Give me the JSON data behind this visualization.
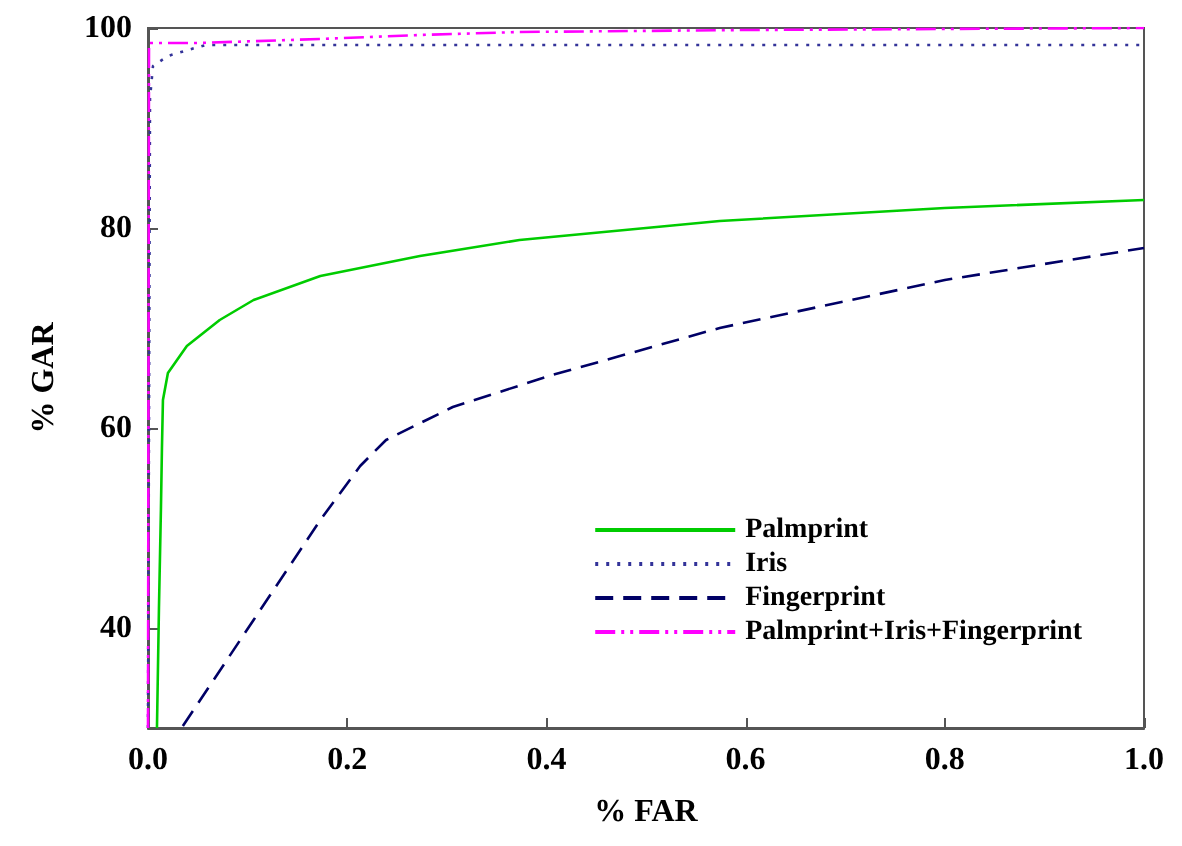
{
  "chart_data": {
    "type": "line",
    "xlabel": "% FAR",
    "ylabel": "% GAR",
    "xlim": [
      0,
      1
    ],
    "xticks": [
      {
        "value": 0,
        "label": "0.0"
      },
      0.2,
      0.4,
      0.6,
      0.8,
      {
        "value": 1,
        "label": "1.0"
      }
    ],
    "ylim": [
      30,
      100
    ],
    "yticks": [
      40,
      60,
      80,
      100
    ],
    "grid": false,
    "legend": "bottom right",
    "marker": "none",
    "series": [
      {
        "name": "Palmprint",
        "color": "#00cc00",
        "line_style": "solid",
        "x": [
          0.009,
          0.011,
          0.013,
          0.014,
          0.015,
          0.02,
          0.039,
          0.072,
          0.106,
          0.173,
          0.273,
          0.373,
          0.574,
          0.8,
          1.0
        ],
        "values": [
          30,
          42,
          52,
          58,
          62.8,
          65.5,
          68.2,
          70.8,
          72.8,
          75.2,
          77.2,
          78.8,
          80.7,
          82,
          82.8
        ]
      },
      {
        "name": "Iris",
        "color": "#333399",
        "line_style": "dotted",
        "x": [
          0,
          0.002,
          0.005,
          0.02,
          0.04,
          0.058,
          0.2,
          0.6,
          1.0
        ],
        "values": [
          30,
          93,
          96.2,
          97.2,
          97.8,
          98.3,
          98.3,
          98.3,
          98.3
        ]
      },
      {
        "name": "Fingerprint",
        "color": "#000066",
        "line_style": "dashed",
        "x": [
          0.035,
          0.106,
          0.173,
          0.213,
          0.239,
          0.306,
          0.406,
          0.574,
          0.8,
          1.0
        ],
        "values": [
          30.2,
          40.8,
          50.8,
          56.2,
          58.8,
          62.1,
          65.3,
          70,
          74.8,
          78
        ]
      },
      {
        "name": "Palmprint+Iris+Fingerprint",
        "color": "#ff00ff",
        "line_style": "dashdot",
        "x": [
          0,
          0.001,
          0.05,
          0.173,
          0.273,
          0.373,
          0.6,
          1.0
        ],
        "values": [
          30,
          98.5,
          98.5,
          98.9,
          99.3,
          99.6,
          99.8,
          100
        ]
      }
    ]
  }
}
